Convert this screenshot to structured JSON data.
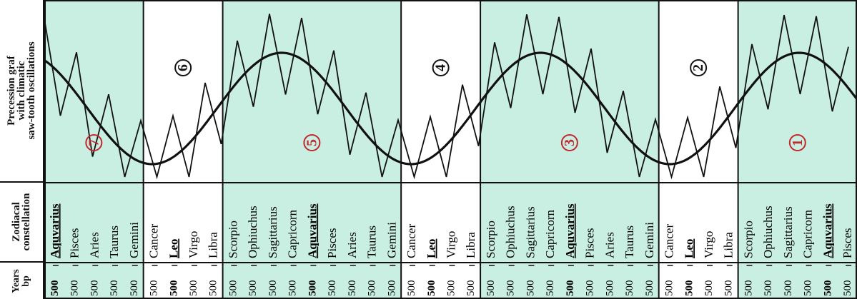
{
  "row_labels": {
    "precession": [
      "Precession graf",
      "with climatic",
      "saw-tooth oscillations"
    ],
    "zodiacal": [
      "Zodiacal",
      "constellation"
    ],
    "years": [
      "Years",
      "bp"
    ]
  },
  "colors": {
    "cyan_band": "#c9efe2",
    "white_band": "#ffffff",
    "cycle_number_red": "#c0282d",
    "cycle_number_black": "#111111",
    "line": "#111111"
  },
  "bands": [
    {
      "type": "cyan",
      "cycle": "7",
      "number_color": "red",
      "constellations": [
        "Aquvarius",
        "Pisces",
        "Aries",
        "Taurus",
        "Gemini"
      ],
      "key_index": 0
    },
    {
      "type": "white",
      "cycle": "6",
      "number_color": "black",
      "constellations": [
        "Cancer",
        "Leo",
        "Virgo",
        "Libra"
      ],
      "key_index": 1
    },
    {
      "type": "cyan",
      "cycle": "5",
      "number_color": "red",
      "constellations": [
        "Scorpio",
        "Ophiuchus",
        "Sagittarius",
        "Capricorn",
        "Aquvarius",
        "Pisces",
        "Aries",
        "Taurus",
        "Gemini"
      ],
      "key_index": 4
    },
    {
      "type": "white",
      "cycle": "4",
      "number_color": "black",
      "constellations": [
        "Cancer",
        "Leo",
        "Virgo",
        "Libra"
      ],
      "key_index": 1
    },
    {
      "type": "cyan",
      "cycle": "3",
      "number_color": "red",
      "constellations": [
        "Scorpio",
        "Ophiuchus",
        "Sagittarius",
        "Capricorn",
        "Aquvarius",
        "Pisces",
        "Aries",
        "Taurus",
        "Gemini"
      ],
      "key_index": 4
    },
    {
      "type": "white",
      "cycle": "2",
      "number_color": "black",
      "constellations": [
        "Cancer",
        "Leo",
        "Virgo",
        "Libra"
      ],
      "key_index": 1
    },
    {
      "type": "cyan",
      "cycle": "1",
      "number_color": "red",
      "constellations": [
        "Scorpio",
        "Ophiuchus",
        "Sagittarius",
        "Capricorn",
        "Aquvarius",
        "Pisces"
      ],
      "key_index": 4
    }
  ],
  "year_tick_label": "500",
  "chart_data": {
    "type": "line",
    "series": [
      {
        "curve": "smooth precession sine",
        "cycles_shown": 3.4
      },
      {
        "curve": "climatic saw-tooth oscillations",
        "teeth_per_band_approx": 4.5
      }
    ]
  }
}
